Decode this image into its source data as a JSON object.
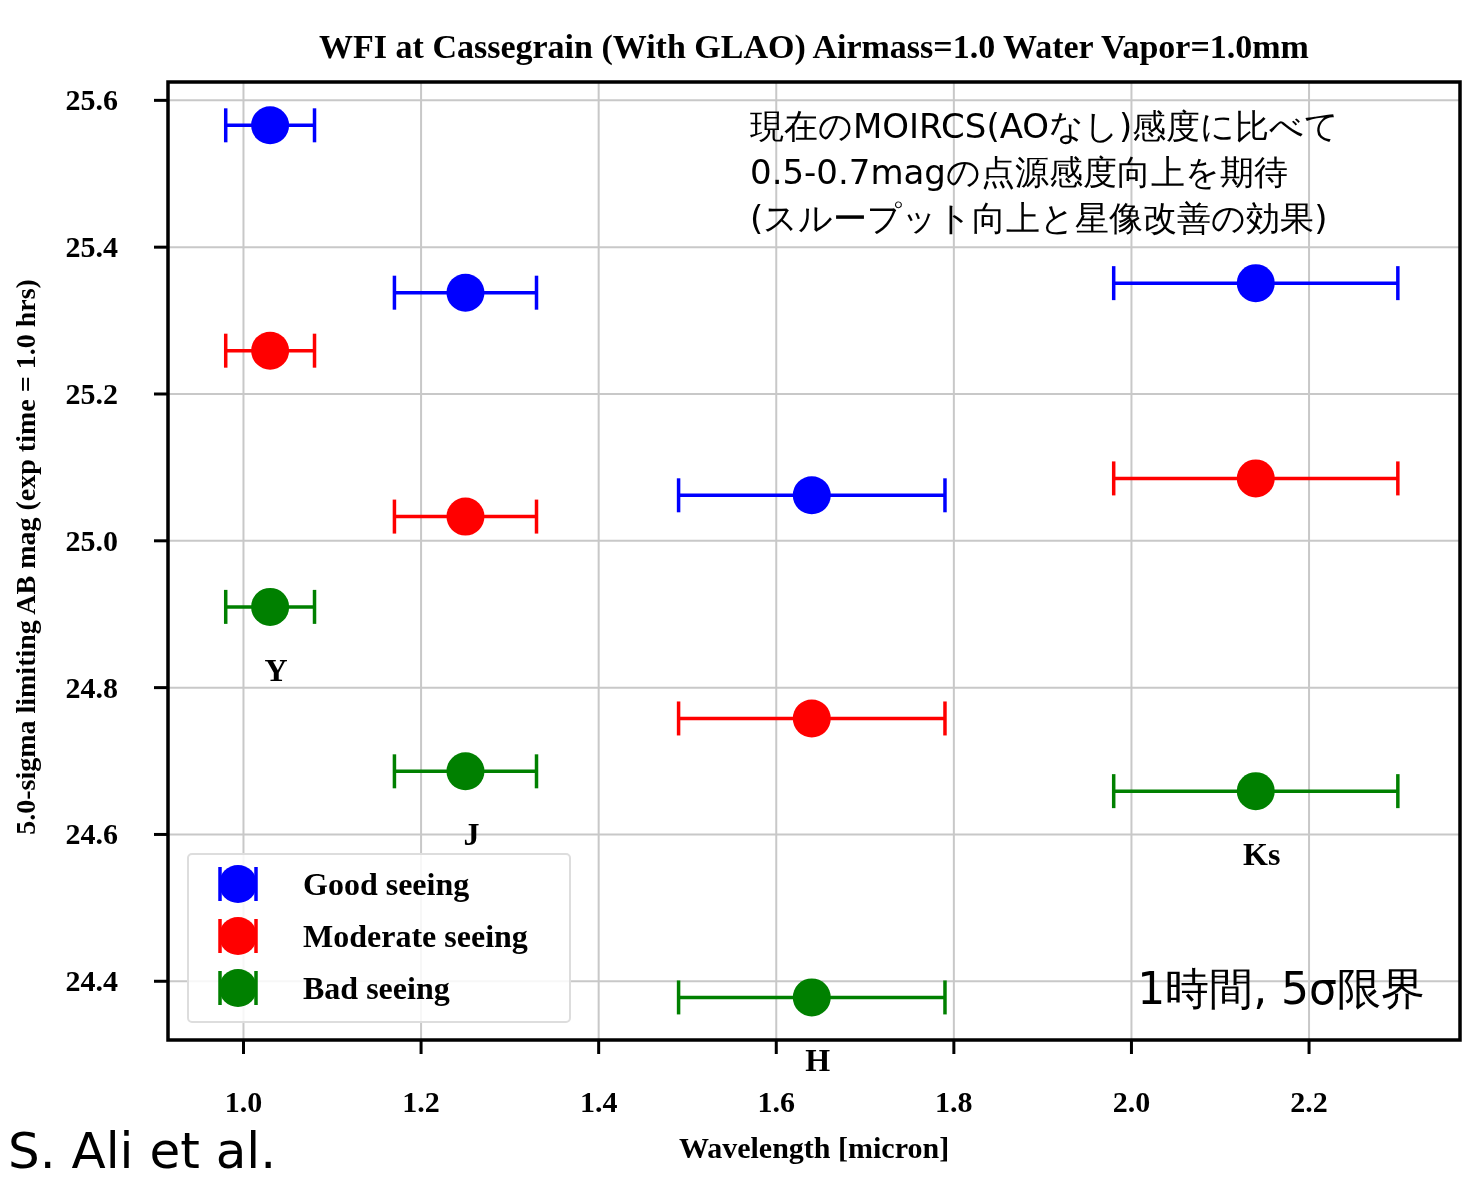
{
  "chart_data": {
    "type": "scatter",
    "title": "WFI at Cassegrain (With GLAO) Airmass=1.0 Water Vapor=1.0mm",
    "xlabel": "Wavelength [micron]",
    "ylabel": "5.0-sigma limiting AB mag (exp time = 1.0 hrs)",
    "xlim": [
      0.915,
      2.37
    ],
    "ylim": [
      24.32,
      25.625
    ],
    "xticks": [
      {
        "value": 1.0,
        "label": "1.0"
      },
      {
        "value": 1.2,
        "label": "1.2"
      },
      {
        "value": 1.4,
        "label": "1.4"
      },
      {
        "value": 1.6,
        "label": "1.6"
      },
      {
        "value": 1.8,
        "label": "1.8"
      },
      {
        "value": 2.0,
        "label": "2.0"
      },
      {
        "value": 2.2,
        "label": "2.2"
      }
    ],
    "yticks": [
      {
        "value": 24.4,
        "label": "24.4"
      },
      {
        "value": 24.6,
        "label": "24.6"
      },
      {
        "value": 24.8,
        "label": "24.8"
      },
      {
        "value": 25.0,
        "label": "25.0"
      },
      {
        "value": 25.2,
        "label": "25.2"
      },
      {
        "value": 25.4,
        "label": "25.4"
      },
      {
        "value": 25.6,
        "label": "25.6"
      }
    ],
    "grid": true,
    "legend": "bottom left",
    "marker": "circle",
    "series": [
      {
        "name": "Good seeing",
        "color": "#0000ff",
        "x": [
          1.03,
          1.25,
          1.64,
          2.14
        ],
        "values": [
          25.566,
          25.338,
          25.062,
          25.351
        ],
        "xerrors": [
          0.05,
          0.08,
          0.15,
          0.16
        ]
      },
      {
        "name": "Moderate seeing",
        "color": "#ff0000",
        "x": [
          1.03,
          1.25,
          1.64,
          2.14
        ],
        "values": [
          25.259,
          25.033,
          24.758,
          25.085
        ],
        "xerrors": [
          0.05,
          0.08,
          0.15,
          0.16
        ]
      },
      {
        "name": "Bad seeing",
        "color": "#008000",
        "x": [
          1.03,
          1.25,
          1.64,
          2.14
        ],
        "values": [
          24.91,
          24.686,
          24.378,
          24.659
        ],
        "xerrors": [
          0.05,
          0.08,
          0.15,
          0.16
        ]
      }
    ],
    "annotations": [
      "Y",
      "J",
      "H",
      "Ks",
      "現在のMOIRCS(AOなし)感度に比べて\n0.5-0.7magの点源感度向上を期待\n(スループット向上と星像改善の効果)",
      "1時間, 5σ限界",
      "S. Ali et al."
    ]
  }
}
